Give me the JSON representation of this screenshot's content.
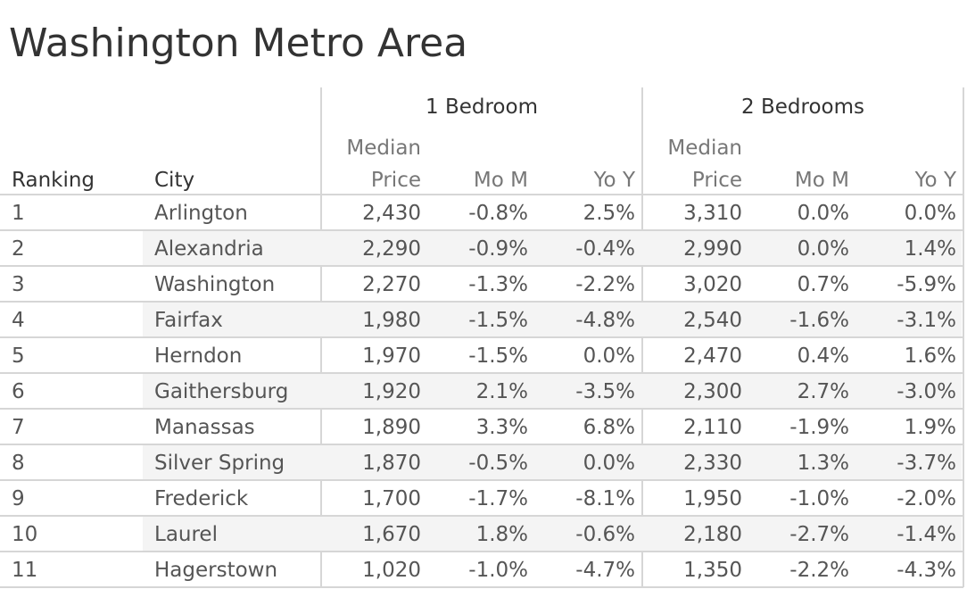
{
  "title": "Washington Metro Area",
  "chart_data": {
    "type": "table",
    "title": "Washington Metro Area",
    "column_groups": [
      "1 Bedroom",
      "2 Bedrooms"
    ],
    "headers": {
      "ranking": "Ranking",
      "city": "City",
      "median_top": "Median",
      "median_bottom": "Price",
      "mom": "Mo M",
      "yoy": "Yo Y"
    },
    "rows": [
      {
        "rank": "1",
        "city": "Arlington",
        "b1_price": "2,430",
        "b1_mom": "-0.8%",
        "b1_yoy": "2.5%",
        "b2_price": "3,310",
        "b2_mom": "0.0%",
        "b2_yoy": "0.0%"
      },
      {
        "rank": "2",
        "city": "Alexandria",
        "b1_price": "2,290",
        "b1_mom": "-0.9%",
        "b1_yoy": "-0.4%",
        "b2_price": "2,990",
        "b2_mom": "0.0%",
        "b2_yoy": "1.4%"
      },
      {
        "rank": "3",
        "city": "Washington",
        "b1_price": "2,270",
        "b1_mom": "-1.3%",
        "b1_yoy": "-2.2%",
        "b2_price": "3,020",
        "b2_mom": "0.7%",
        "b2_yoy": "-5.9%"
      },
      {
        "rank": "4",
        "city": "Fairfax",
        "b1_price": "1,980",
        "b1_mom": "-1.5%",
        "b1_yoy": "-4.8%",
        "b2_price": "2,540",
        "b2_mom": "-1.6%",
        "b2_yoy": "-3.1%"
      },
      {
        "rank": "5",
        "city": "Herndon",
        "b1_price": "1,970",
        "b1_mom": "-1.5%",
        "b1_yoy": "0.0%",
        "b2_price": "2,470",
        "b2_mom": "0.4%",
        "b2_yoy": "1.6%"
      },
      {
        "rank": "6",
        "city": "Gaithersburg",
        "b1_price": "1,920",
        "b1_mom": "2.1%",
        "b1_yoy": "-3.5%",
        "b2_price": "2,300",
        "b2_mom": "2.7%",
        "b2_yoy": "-3.0%"
      },
      {
        "rank": "7",
        "city": "Manassas",
        "b1_price": "1,890",
        "b1_mom": "3.3%",
        "b1_yoy": "6.8%",
        "b2_price": "2,110",
        "b2_mom": "-1.9%",
        "b2_yoy": "1.9%"
      },
      {
        "rank": "8",
        "city": "Silver Spring",
        "b1_price": "1,870",
        "b1_mom": "-0.5%",
        "b1_yoy": "0.0%",
        "b2_price": "2,330",
        "b2_mom": "1.3%",
        "b2_yoy": "-3.7%"
      },
      {
        "rank": "9",
        "city": "Frederick",
        "b1_price": "1,700",
        "b1_mom": "-1.7%",
        "b1_yoy": "-8.1%",
        "b2_price": "1,950",
        "b2_mom": "-1.0%",
        "b2_yoy": "-2.0%"
      },
      {
        "rank": "10",
        "city": "Laurel",
        "b1_price": "1,670",
        "b1_mom": "1.8%",
        "b1_yoy": "-0.6%",
        "b2_price": "2,180",
        "b2_mom": "-2.7%",
        "b2_yoy": "-1.4%"
      },
      {
        "rank": "11",
        "city": "Hagerstown",
        "b1_price": "1,020",
        "b1_mom": "-1.0%",
        "b1_yoy": "-4.7%",
        "b2_price": "1,350",
        "b2_mom": "-2.2%",
        "b2_yoy": "-4.3%"
      }
    ]
  }
}
